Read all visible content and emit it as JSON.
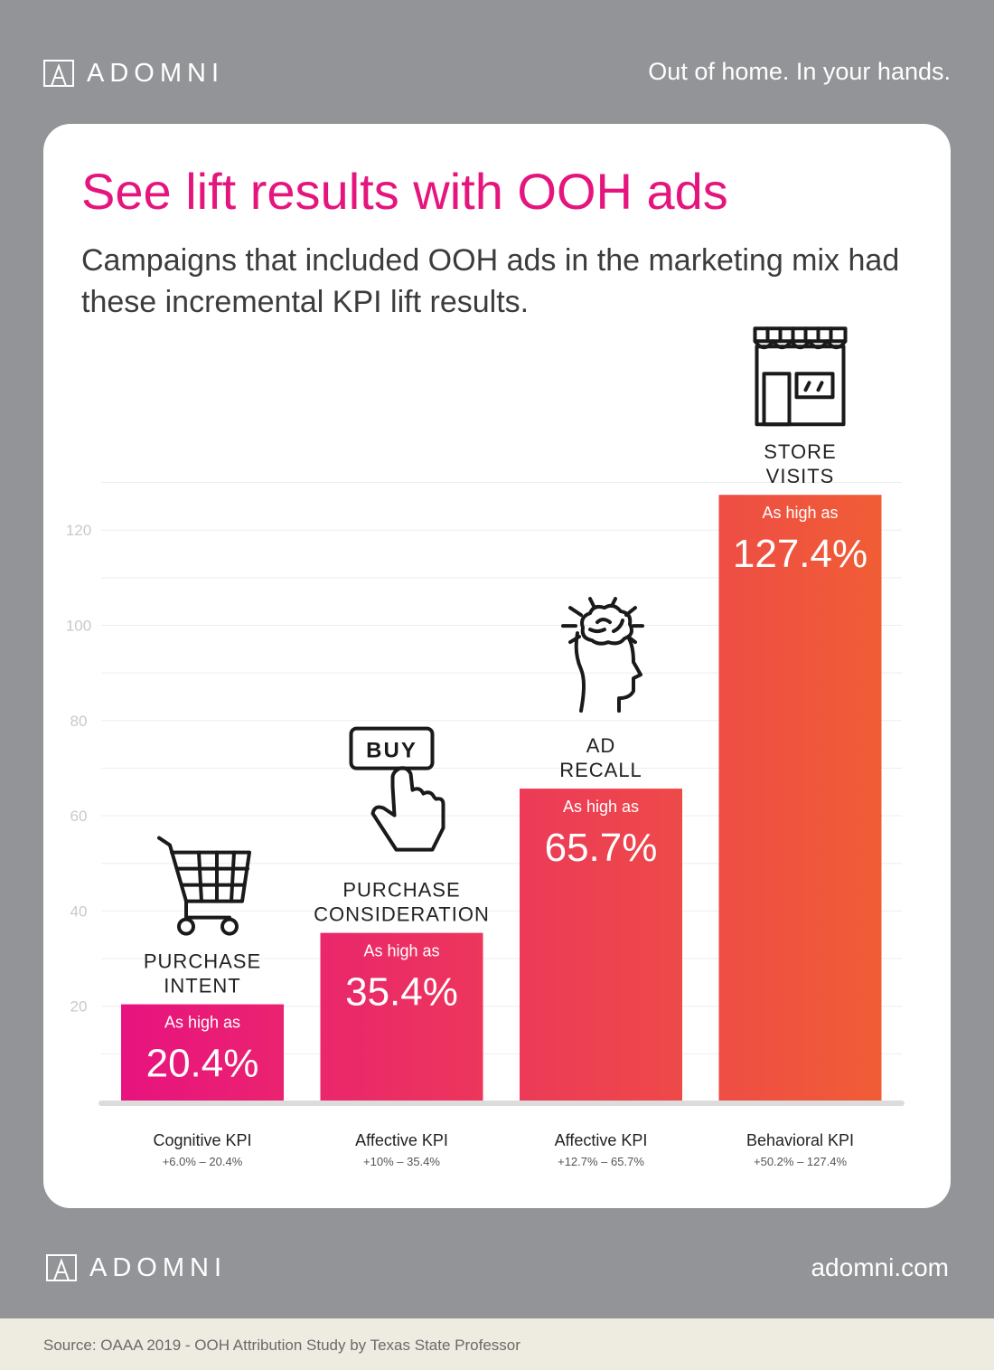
{
  "header": {
    "logo_text": "ADOMNI",
    "tagline": "Out of home. In your hands."
  },
  "card": {
    "title": "See lift results with OOH ads",
    "subtitle": "Campaigns that included OOH ads in the marketing mix had these incremental KPI lift results."
  },
  "chart_data": {
    "type": "bar",
    "title": "See lift results with OOH ads",
    "categories": [
      "Cognitive KPI",
      "Affective KPI",
      "Affective KPI",
      "Behavioral KPI"
    ],
    "values": [
      20.4,
      35.4,
      65.7,
      127.4
    ],
    "ylim": [
      0,
      130
    ],
    "yticks": [
      20,
      40,
      60,
      80,
      100,
      120
    ],
    "grid": true,
    "xlabel": "",
    "ylabel": "",
    "colors": {
      "start": "#e8137f",
      "end": "#f05d35"
    },
    "bars": [
      {
        "name": "PURCHASE INTENT",
        "name_lines": [
          "PURCHASE",
          "INTENT"
        ],
        "icon": "shopping-cart-icon",
        "prefix": "As high as",
        "value_label": "20.4%",
        "category": "Cognitive KPI",
        "range": "+6.0% – 20.4%"
      },
      {
        "name": "PURCHASE CONSIDERATION",
        "name_lines": [
          "PURCHASE",
          "CONSIDERATION"
        ],
        "icon": "buy-button-icon",
        "icon_text": "BUY",
        "prefix": "As high as",
        "value_label": "35.4%",
        "category": "Affective KPI",
        "range": "+10% – 35.4%"
      },
      {
        "name": "AD RECALL",
        "name_lines": [
          "AD",
          "RECALL"
        ],
        "icon": "brain-head-icon",
        "prefix": "As high as",
        "value_label": "65.7%",
        "category": "Affective KPI",
        "range": "+12.7% – 65.7%"
      },
      {
        "name": "STORE VISITS",
        "name_lines": [
          "STORE",
          "VISITS"
        ],
        "icon": "storefront-icon",
        "prefix": "As high as",
        "value_label": "127.4%",
        "category": "Behavioral KPI",
        "range": "+50.2% – 127.4%"
      }
    ]
  },
  "footer": {
    "logo_text": "ADOMNI",
    "website": "adomni.com",
    "source": "Source: OAAA 2019 - OOH Attribution Study by Texas State Professor"
  }
}
